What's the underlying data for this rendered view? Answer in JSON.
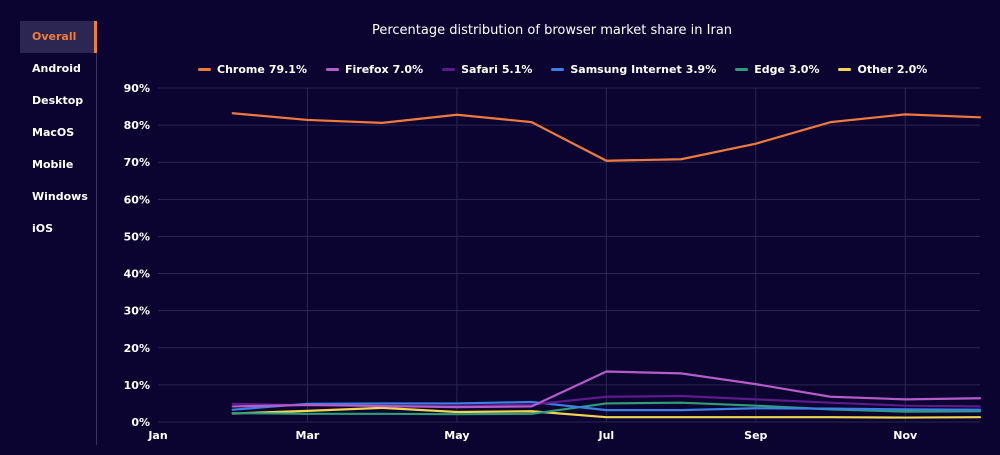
{
  "sidebar": {
    "items": [
      {
        "label": "Overall",
        "active": true
      },
      {
        "label": "Android",
        "active": false
      },
      {
        "label": "Desktop",
        "active": false
      },
      {
        "label": "MacOS",
        "active": false
      },
      {
        "label": "Mobile",
        "active": false
      },
      {
        "label": "Windows",
        "active": false
      },
      {
        "label": "iOS",
        "active": false
      }
    ]
  },
  "chart_data": {
    "type": "line",
    "title": "Percentage distribution of browser market share in Iran",
    "xlabel": "",
    "ylabel": "",
    "ylim": [
      0,
      90
    ],
    "y_ticks": [
      "0%",
      "10%",
      "20%",
      "30%",
      "40%",
      "50%",
      "60%",
      "70%",
      "80%",
      "90%"
    ],
    "x_tick_labels": [
      "Jan",
      "Mar",
      "May",
      "Jul",
      "Sep",
      "Nov"
    ],
    "x_tick_positions": [
      0,
      2,
      4,
      6,
      8,
      10
    ],
    "x": [
      1,
      2,
      3,
      4,
      5,
      6,
      7,
      8,
      9,
      10,
      11
    ],
    "grid": true,
    "legend_position": "top",
    "series": [
      {
        "name": "Chrome",
        "value_label": "79.1%",
        "color": "#ef7a3d",
        "values": [
          83.2,
          81.4,
          80.6,
          82.8,
          80.8,
          70.4,
          70.8,
          75.0,
          80.8,
          82.9,
          82.1
        ]
      },
      {
        "name": "Firefox",
        "value_label": "7.0%",
        "color": "#b55cc9",
        "values": [
          4.2,
          4.6,
          4.3,
          4.0,
          4.2,
          13.6,
          13.1,
          10.2,
          6.8,
          6.1,
          6.4
        ]
      },
      {
        "name": "Safari",
        "value_label": "5.1%",
        "color": "#5c1a8a",
        "values": [
          4.9,
          4.5,
          4.4,
          4.3,
          4.7,
          6.8,
          7.0,
          6.1,
          5.2,
          4.4,
          4.2
        ]
      },
      {
        "name": "Samsung Internet",
        "value_label": "3.9%",
        "color": "#3c80e6",
        "values": [
          3.3,
          4.9,
          5.0,
          5.0,
          5.4,
          3.2,
          3.2,
          3.7,
          3.6,
          3.4,
          3.3
        ]
      },
      {
        "name": "Edge",
        "value_label": "3.0%",
        "color": "#2f9e77",
        "values": [
          2.4,
          2.2,
          2.2,
          2.1,
          2.2,
          5.0,
          5.2,
          4.4,
          3.4,
          2.8,
          2.9
        ]
      },
      {
        "name": "Other",
        "value_label": "2.0%",
        "color": "#f2d54e",
        "values": [
          2.3,
          3.0,
          3.8,
          2.7,
          2.9,
          1.3,
          1.3,
          1.3,
          1.3,
          1.2,
          1.3
        ]
      }
    ]
  }
}
